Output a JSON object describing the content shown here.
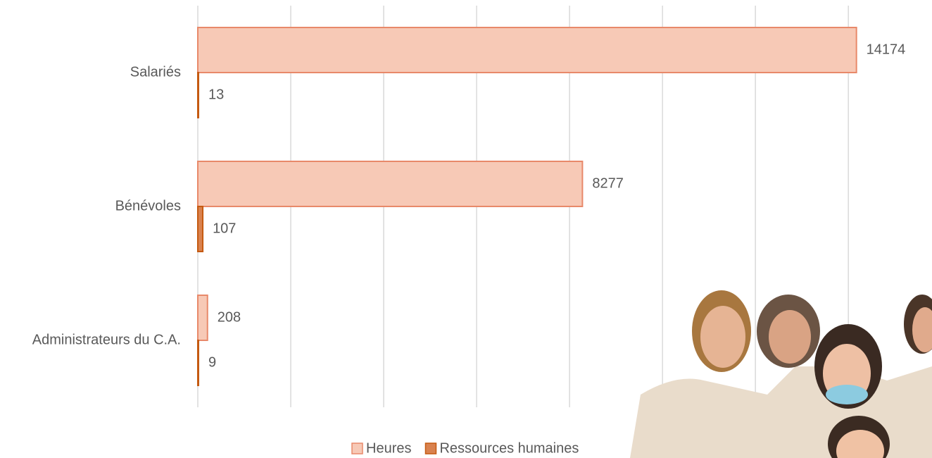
{
  "chart_data": {
    "type": "hbar",
    "categories": [
      "Salariés",
      "Bénévoles",
      "Administrateurs du C.A."
    ],
    "series": [
      {
        "name": "Heures",
        "color": "#f7c9b6",
        "values": [
          14174,
          8277,
          208
        ]
      },
      {
        "name": "Ressources humaines",
        "color": "#d9824f",
        "values": [
          13,
          107,
          9
        ]
      }
    ],
    "xlim": [
      0,
      15800
    ],
    "xticks": [
      0,
      2000,
      4000,
      6000,
      8000,
      10000,
      12000,
      14000
    ],
    "grid": true,
    "legend": "bottom"
  }
}
